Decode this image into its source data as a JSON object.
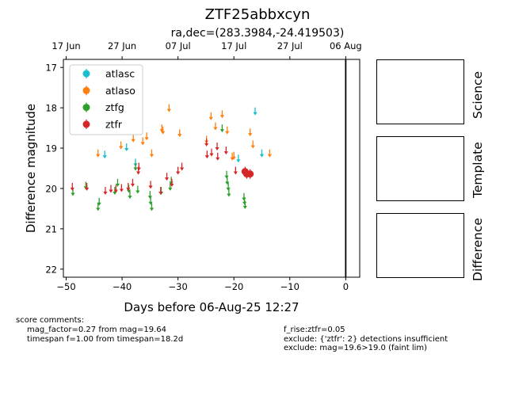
{
  "figure": {
    "title": "ZTF25abbxcyn",
    "subtitle": "ra,dec=(283.3984,-24.419503)"
  },
  "panels": {
    "science": "Science",
    "template": "Template",
    "difference": "Difference"
  },
  "comments": {
    "heading": "score comments:",
    "left": [
      "mag_factor=0.27 from mag=19.64",
      "timespan f=1.00 from timespan=18.2d"
    ],
    "right": [
      "f_rise:ztfr=0.05",
      "exclude: {'ztfr': 2} detections insufficient",
      "exclude: mag=19.6>19.0 (faint lim)"
    ]
  },
  "chart_data": {
    "type": "scatter",
    "xlabel": "Days before 06-Aug-25 12:27",
    "ylabel": "Difference magnitude",
    "xlim": [
      -50.5,
      2.5
    ],
    "ylim": [
      22.2,
      16.8
    ],
    "y_inverted": true,
    "xticks": [
      -50,
      -40,
      -30,
      -20,
      -10,
      0
    ],
    "yticks": [
      17,
      18,
      19,
      20,
      21,
      22
    ],
    "top_axis_ticks": [
      {
        "x": -50,
        "label": "17 Jun"
      },
      {
        "x": -40,
        "label": "27 Jun"
      },
      {
        "x": -30,
        "label": "07 Jul"
      },
      {
        "x": -20,
        "label": "17 Jul"
      },
      {
        "x": -10,
        "label": "27 Jul"
      },
      {
        "x": 0,
        "label": "06 Aug"
      }
    ],
    "vline_x": 0,
    "legend_position": "upper left",
    "series": [
      {
        "name": "atlasc",
        "color": "#17becf",
        "upper_limits": [
          [
            -43.1,
            19.15
          ],
          [
            -39.2,
            18.97
          ],
          [
            -37.6,
            19.35
          ],
          [
            -19.2,
            19.25
          ],
          [
            -16.2,
            18.08
          ],
          [
            -15.0,
            19.12
          ]
        ]
      },
      {
        "name": "atlaso",
        "color": "#ff7f0e",
        "upper_limits": [
          [
            -44.3,
            19.12
          ],
          [
            -40.2,
            18.92
          ],
          [
            -38.0,
            18.75
          ],
          [
            -36.3,
            18.82
          ],
          [
            -35.6,
            18.7
          ],
          [
            -34.7,
            19.12
          ],
          [
            -32.9,
            18.5
          ],
          [
            -32.7,
            18.55
          ],
          [
            -31.6,
            18.0
          ],
          [
            -29.7,
            18.62
          ],
          [
            -24.9,
            18.78
          ],
          [
            -24.1,
            18.2
          ],
          [
            -23.3,
            18.45
          ],
          [
            -22.1,
            18.15
          ],
          [
            -21.2,
            18.55
          ],
          [
            -20.3,
            19.2
          ],
          [
            -20.0,
            19.18
          ],
          [
            -17.1,
            18.6
          ],
          [
            -16.6,
            18.9
          ],
          [
            -13.6,
            19.12
          ]
        ]
      },
      {
        "name": "ztfg",
        "color": "#2ca02c",
        "upper_limits": [
          [
            -48.8,
            20.08
          ],
          [
            -46.5,
            19.92
          ],
          [
            -44.3,
            20.45
          ],
          [
            -44.1,
            20.32
          ],
          [
            -41.3,
            20.05
          ],
          [
            -40.8,
            19.85
          ],
          [
            -38.8,
            20.0
          ],
          [
            -38.6,
            20.15
          ],
          [
            -37.6,
            19.45
          ],
          [
            -37.2,
            20.02
          ],
          [
            -35.0,
            20.15
          ],
          [
            -34.9,
            20.3
          ],
          [
            -34.7,
            20.45
          ],
          [
            -33.0,
            20.05
          ],
          [
            -31.4,
            19.95
          ],
          [
            -31.2,
            19.8
          ],
          [
            -22.1,
            18.5
          ],
          [
            -21.3,
            19.65
          ],
          [
            -21.2,
            19.8
          ],
          [
            -21.0,
            19.95
          ],
          [
            -20.9,
            20.1
          ],
          [
            -18.2,
            20.2
          ],
          [
            -18.1,
            20.3
          ],
          [
            -18.0,
            20.4
          ]
        ]
      },
      {
        "name": "ztfr",
        "color": "#d62728",
        "upper_limits": [
          [
            -48.9,
            19.95
          ],
          [
            -46.3,
            19.95
          ],
          [
            -43.0,
            20.05
          ],
          [
            -42.0,
            20.0
          ],
          [
            -41.1,
            20.0
          ],
          [
            -40.1,
            19.98
          ],
          [
            -38.9,
            19.95
          ],
          [
            -38.1,
            19.85
          ],
          [
            -37.1,
            19.55
          ],
          [
            -37.0,
            19.45
          ],
          [
            -34.9,
            19.9
          ],
          [
            -33.1,
            20.05
          ],
          [
            -32.0,
            19.7
          ],
          [
            -31.1,
            19.85
          ],
          [
            -30.0,
            19.55
          ],
          [
            -29.3,
            19.45
          ],
          [
            -24.9,
            18.85
          ],
          [
            -24.8,
            19.15
          ],
          [
            -24.0,
            19.1
          ],
          [
            -23.0,
            18.95
          ],
          [
            -22.9,
            19.2
          ],
          [
            -21.4,
            19.05
          ],
          [
            -19.7,
            19.55
          ],
          [
            -18.1,
            19.6
          ]
        ],
        "detections": [
          [
            -18.0,
            19.58
          ],
          [
            -17.7,
            19.64
          ],
          [
            -17.1,
            19.64
          ]
        ]
      }
    ]
  }
}
